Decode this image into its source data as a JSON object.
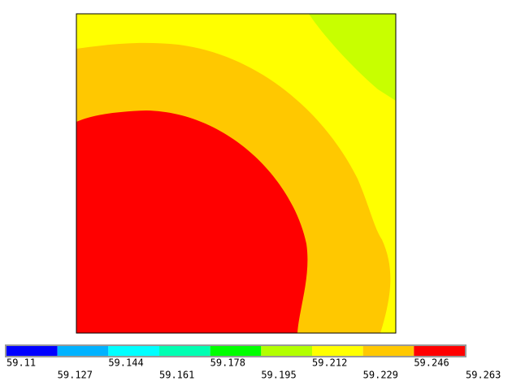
{
  "legend": {
    "levels": [
      59.11,
      59.127,
      59.144,
      59.161,
      59.178,
      59.195,
      59.212,
      59.229,
      59.246,
      59.263
    ],
    "colors": [
      "#0000ff",
      "#00b2ff",
      "#00ffff",
      "#00ffb2",
      "#00ff00",
      "#b2ff00",
      "#ffff00",
      "#ffc800",
      "#ff0000"
    ]
  }
}
